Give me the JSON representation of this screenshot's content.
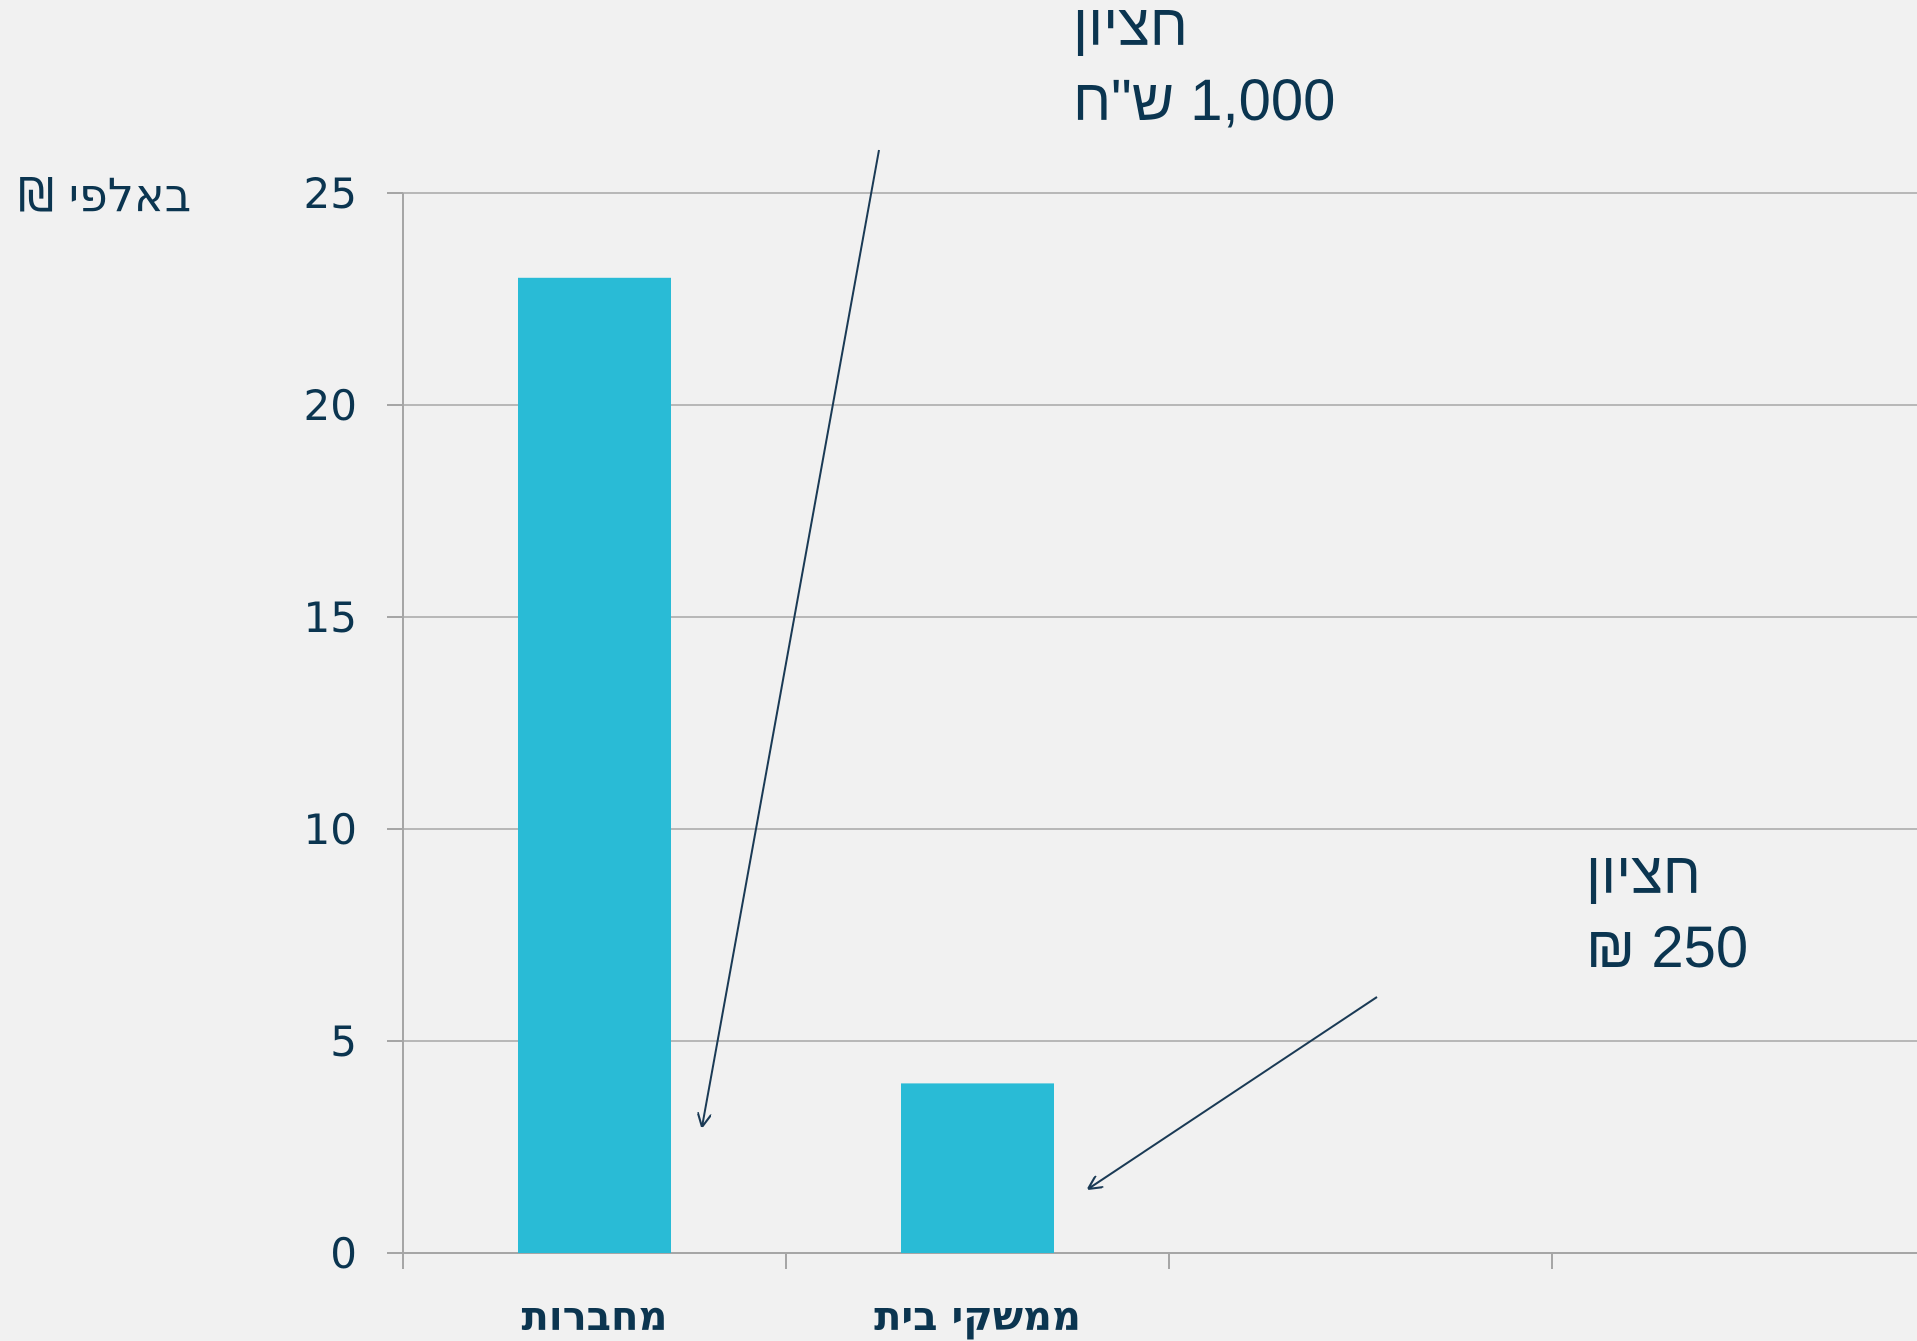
{
  "chart_data": {
    "type": "bar",
    "ylabel": "באלפי ₪",
    "categories": [
      "מחברות",
      "ממשקי בית",
      "",
      ""
    ],
    "values": [
      23,
      4,
      null,
      null
    ],
    "ylim": [
      0,
      25
    ],
    "yticks": [
      0,
      5,
      10,
      15,
      20,
      25
    ],
    "grid": true,
    "colors": {
      "bar": "#29bbd6",
      "grid": "#a6a6a6",
      "text": "#0b3550",
      "annotation_line": "#1a3a55"
    },
    "annotations": [
      {
        "lines": [
          "חציון",
          "1,000 ש\"ח"
        ],
        "points_to_category": "מחברות"
      },
      {
        "lines": [
          "חציון",
          "250 ₪"
        ],
        "points_to_category": "ממשקי בית"
      }
    ]
  }
}
